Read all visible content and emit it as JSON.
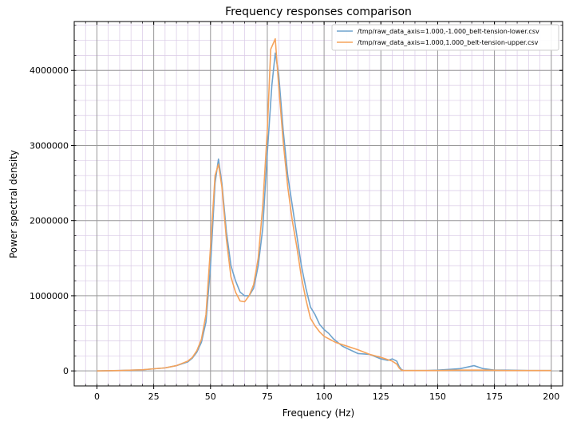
{
  "chart_data": {
    "type": "line",
    "title": "Frequency responses comparison",
    "xlabel": "Frequency (Hz)",
    "ylabel": "Power spectral density",
    "xlim": [
      -10,
      205
    ],
    "ylim": [
      -200000,
      4650000
    ],
    "xticks": [
      0,
      25,
      50,
      75,
      100,
      125,
      150,
      175,
      200
    ],
    "xtick_labels": [
      "0",
      "25",
      "50",
      "75",
      "100",
      "125",
      "150",
      "175",
      "200"
    ],
    "yticks": [
      0,
      1000000,
      2000000,
      3000000,
      4000000
    ],
    "ytick_labels": [
      "0",
      "1000000",
      "2000000",
      "3000000",
      "4000000"
    ],
    "grid": true,
    "legend_position": "top-right",
    "series": [
      {
        "name": "/tmp/raw_data_axis=1.000,-1.000_belt-tension-lower.csv",
        "color": "#6fa3cd",
        "x": [
          0,
          10,
          20,
          30,
          35,
          40,
          42,
          44,
          46,
          48,
          50,
          52,
          53.5,
          55,
          57,
          59,
          61,
          63,
          65,
          67,
          69,
          71,
          73,
          75,
          77,
          78.5,
          80,
          82,
          84,
          86,
          88,
          90,
          92,
          94,
          96,
          98,
          100,
          102,
          104,
          106,
          108,
          110,
          115,
          120,
          125,
          128,
          130,
          132,
          133,
          134,
          135,
          136,
          140,
          145,
          150,
          155,
          160,
          163,
          166,
          170,
          175,
          180,
          190,
          200
        ],
        "y": [
          0,
          5000,
          15000,
          40000,
          70000,
          120000,
          170000,
          250000,
          380000,
          650000,
          1400000,
          2500000,
          2820000,
          2500000,
          1850000,
          1400000,
          1200000,
          1050000,
          1000000,
          1000000,
          1100000,
          1400000,
          1900000,
          2900000,
          3800000,
          4230000,
          3950000,
          3200000,
          2600000,
          2200000,
          1800000,
          1400000,
          1100000,
          850000,
          750000,
          620000,
          550000,
          500000,
          430000,
          380000,
          330000,
          300000,
          230000,
          220000,
          160000,
          140000,
          160000,
          130000,
          60000,
          20000,
          5000,
          5000,
          5000,
          5000,
          10000,
          20000,
          30000,
          50000,
          70000,
          30000,
          10000,
          10000,
          5000,
          5000
        ]
      },
      {
        "name": "/tmp/raw_data_axis=1.000,1.000_belt-tension-upper.csv",
        "color": "#f5a35c",
        "x": [
          0,
          10,
          20,
          30,
          35,
          40,
          42,
          44,
          46,
          48,
          50,
          52,
          53.5,
          55,
          57,
          59,
          61,
          63,
          65,
          67,
          69,
          71,
          73,
          75,
          76.5,
          78.5,
          80,
          82,
          84,
          86,
          88,
          90,
          92,
          94,
          96,
          98,
          100,
          105,
          110,
          115,
          120,
          125,
          130,
          132,
          133,
          134,
          135,
          136,
          140,
          150,
          160,
          170,
          180,
          190,
          200
        ],
        "y": [
          0,
          5000,
          15000,
          40000,
          70000,
          130000,
          180000,
          270000,
          420000,
          750000,
          1650000,
          2600000,
          2750000,
          2450000,
          1750000,
          1250000,
          1050000,
          930000,
          920000,
          1000000,
          1150000,
          1500000,
          2200000,
          3200000,
          4280000,
          4420000,
          3800000,
          3050000,
          2450000,
          2000000,
          1650000,
          1250000,
          950000,
          700000,
          600000,
          520000,
          460000,
          380000,
          330000,
          280000,
          220000,
          180000,
          130000,
          90000,
          40000,
          10000,
          5000,
          5000,
          5000,
          5000,
          10000,
          10000,
          5000,
          5000,
          5000
        ]
      }
    ]
  }
}
